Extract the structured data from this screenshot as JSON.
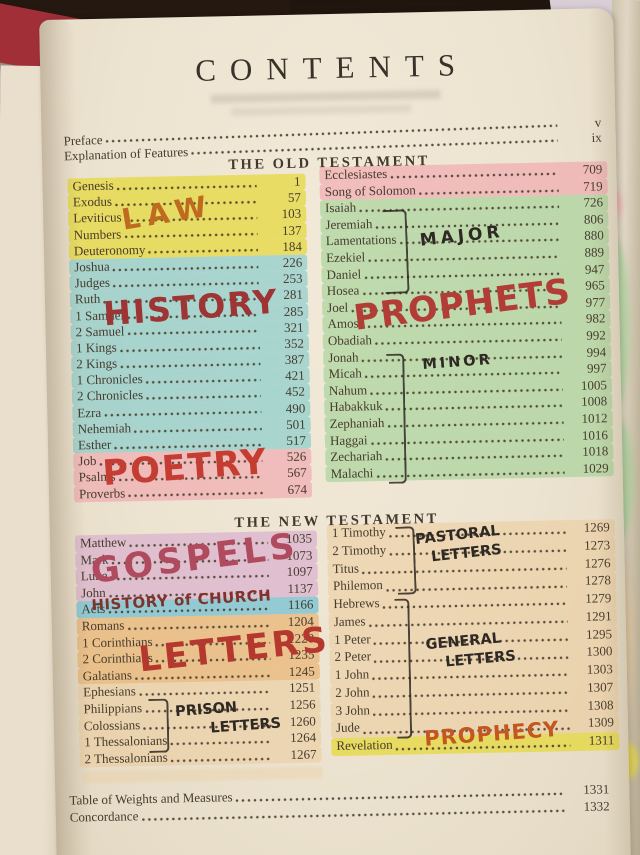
{
  "colors": {
    "hl_yellow": "rgba(228,216,56,0.72)",
    "hl_blue": "rgba(126,202,204,0.62)",
    "hl_pink": "rgba(242,162,172,0.60)",
    "hl_green": "rgba(150,208,140,0.55)",
    "hl_purple": "rgba(214,162,206,0.55)",
    "hl_cyan": "rgba(98,188,212,0.65)",
    "hl_orange": "rgba(233,166,86,0.55)",
    "hl_orange_light": "rgba(238,198,142,0.45)",
    "ink_print": "#463b2e",
    "ink_black": "#2e2924",
    "ink_law": "#bf6b1f",
    "ink_history": "#9e3434",
    "ink_poetry": "#c33d33",
    "ink_prophets": "#b23c36",
    "ink_gospels": "#b04a5e",
    "ink_church": "#7d342c",
    "ink_letters": "#b5382e",
    "ink_prophecy": "#c2571f",
    "page_cream": "#ece3d0",
    "cover_red": "#a12f38"
  },
  "page": {
    "title": "CONTENTS",
    "front_matter": [
      {
        "name": "Preface",
        "page": "v"
      },
      {
        "name": "Explanation of Features",
        "page": "ix"
      }
    ],
    "old_testament": {
      "heading": "THE OLD TESTAMENT",
      "left": [
        {
          "name": "Genesis",
          "page": "1",
          "hl": "yellow"
        },
        {
          "name": "Exodus",
          "page": "57",
          "hl": "yellow"
        },
        {
          "name": "Leviticus",
          "page": "103",
          "hl": "yellow"
        },
        {
          "name": "Numbers",
          "page": "137",
          "hl": "yellow"
        },
        {
          "name": "Deuteronomy",
          "page": "184",
          "hl": "yellow"
        },
        {
          "name": "Joshua",
          "page": "226",
          "hl": "blue"
        },
        {
          "name": "Judges",
          "page": "253",
          "hl": "blue"
        },
        {
          "name": "Ruth",
          "page": "281",
          "hl": "blue"
        },
        {
          "name": "1 Samuel",
          "page": "285",
          "hl": "blue"
        },
        {
          "name": "2 Samuel",
          "page": "321",
          "hl": "blue"
        },
        {
          "name": "1 Kings",
          "page": "352",
          "hl": "blue"
        },
        {
          "name": "2 Kings",
          "page": "387",
          "hl": "blue"
        },
        {
          "name": "1 Chronicles",
          "page": "421",
          "hl": "blue"
        },
        {
          "name": "2 Chronicles",
          "page": "452",
          "hl": "blue"
        },
        {
          "name": "Ezra",
          "page": "490",
          "hl": "blue"
        },
        {
          "name": "Nehemiah",
          "page": "501",
          "hl": "blue"
        },
        {
          "name": "Esther",
          "page": "517",
          "hl": "blue"
        },
        {
          "name": "Job",
          "page": "526",
          "hl": "pink"
        },
        {
          "name": "Psalms",
          "page": "567",
          "hl": "pink"
        },
        {
          "name": "Proverbs",
          "page": "674",
          "hl": "pink"
        }
      ],
      "right": [
        {
          "name": "Ecclesiastes",
          "page": "709",
          "hl": "pink"
        },
        {
          "name": "Song of Solomon",
          "page": "719",
          "hl": "pink"
        },
        {
          "name": "Isaiah",
          "page": "726",
          "hl": "green"
        },
        {
          "name": "Jeremiah",
          "page": "806",
          "hl": "green"
        },
        {
          "name": "Lamentations",
          "page": "880",
          "hl": "green"
        },
        {
          "name": "Ezekiel",
          "page": "889",
          "hl": "green"
        },
        {
          "name": "Daniel",
          "page": "947",
          "hl": "green"
        },
        {
          "name": "Hosea",
          "page": "965",
          "hl": "green"
        },
        {
          "name": "Joel",
          "page": "977",
          "hl": "green"
        },
        {
          "name": "Amos",
          "page": "982",
          "hl": "green"
        },
        {
          "name": "Obadiah",
          "page": "992",
          "hl": "green"
        },
        {
          "name": "Jonah",
          "page": "994",
          "hl": "green"
        },
        {
          "name": "Micah",
          "page": "997",
          "hl": "green"
        },
        {
          "name": "Nahum",
          "page": "1005",
          "hl": "green"
        },
        {
          "name": "Habakkuk",
          "page": "1008",
          "hl": "green"
        },
        {
          "name": "Zephaniah",
          "page": "1012",
          "hl": "green"
        },
        {
          "name": "Haggai",
          "page": "1016",
          "hl": "green"
        },
        {
          "name": "Zechariah",
          "page": "1018",
          "hl": "green"
        },
        {
          "name": "Malachi",
          "page": "1029",
          "hl": "green"
        }
      ]
    },
    "new_testament": {
      "heading": "THE NEW TESTAMENT",
      "left": [
        {
          "name": "Matthew",
          "page": "1035",
          "hl": "purple"
        },
        {
          "name": "Mark",
          "page": "1073",
          "hl": "purple"
        },
        {
          "name": "Luke",
          "page": "1097",
          "hl": "purple"
        },
        {
          "name": "John",
          "page": "1137",
          "hl": "purple"
        },
        {
          "name": "Acts",
          "page": "1166",
          "hl": "cyan"
        },
        {
          "name": "Romans",
          "page": "1204",
          "hl": "orange"
        },
        {
          "name": "1 Corinthians",
          "page": "1220",
          "hl": "orange"
        },
        {
          "name": "2 Corinthians",
          "page": "1235",
          "hl": "orange"
        },
        {
          "name": "Galatians",
          "page": "1245",
          "hl": "orange"
        },
        {
          "name": "Ephesians",
          "page": "1251",
          "hl": "orange_light"
        },
        {
          "name": "Philippians",
          "page": "1256",
          "hl": "orange_light"
        },
        {
          "name": "Colossians",
          "page": "1260",
          "hl": "orange_light"
        },
        {
          "name": "1 Thessalonians",
          "page": "1264",
          "hl": "orange_light"
        },
        {
          "name": "2 Thessalonians",
          "page": "1267",
          "hl": "orange_light"
        }
      ],
      "right": [
        {
          "name": "1 Timothy",
          "page": "1269",
          "hl": "orange_light"
        },
        {
          "name": "2 Timothy",
          "page": "1273",
          "hl": "orange_light"
        },
        {
          "name": "Titus",
          "page": "1276",
          "hl": "orange_light"
        },
        {
          "name": "Philemon",
          "page": "1278",
          "hl": "orange_light"
        },
        {
          "name": "Hebrews",
          "page": "1279",
          "hl": "orange_light"
        },
        {
          "name": "James",
          "page": "1291",
          "hl": "orange_light"
        },
        {
          "name": "1 Peter",
          "page": "1295",
          "hl": "orange_light"
        },
        {
          "name": "2 Peter",
          "page": "1300",
          "hl": "orange_light"
        },
        {
          "name": "1 John",
          "page": "1303",
          "hl": "orange_light"
        },
        {
          "name": "2 John",
          "page": "1307",
          "hl": "orange_light"
        },
        {
          "name": "3 John",
          "page": "1308",
          "hl": "orange_light"
        },
        {
          "name": "Jude",
          "page": "1309",
          "hl": "orange_light"
        },
        {
          "name": "Revelation",
          "page": "1311",
          "hl": "yellow"
        }
      ]
    },
    "back_matter": [
      {
        "name": "Table of Weights and Measures",
        "page": "1331"
      },
      {
        "name": "Concordance",
        "page": "1332"
      }
    ]
  },
  "annotations": {
    "law": "LAW",
    "history": "HISTORY",
    "poetry": "POETRY",
    "prophets": "PROPHETS",
    "major": "MAJOR",
    "minor": "MINOR",
    "gospels": "GOSPELS",
    "history_of_church": "HISTORY of CHURCH",
    "letters": "LETTERS",
    "prison_letters": {
      "line1": "PRISON",
      "line2": "LETTERS"
    },
    "pastoral_letters": {
      "line1": "PASTORAL",
      "line2": "LETTERS"
    },
    "general_letters": {
      "line1": "GENERAL",
      "line2": "LETTERS"
    },
    "prophecy": "PROPHECY"
  },
  "left_page_fragments": [
    "and",
    "ner,",
    "its",
    "ent",
    "",
    "ed",
    "do",
    "nd",
    "of",
    "",
    "g"
  ]
}
